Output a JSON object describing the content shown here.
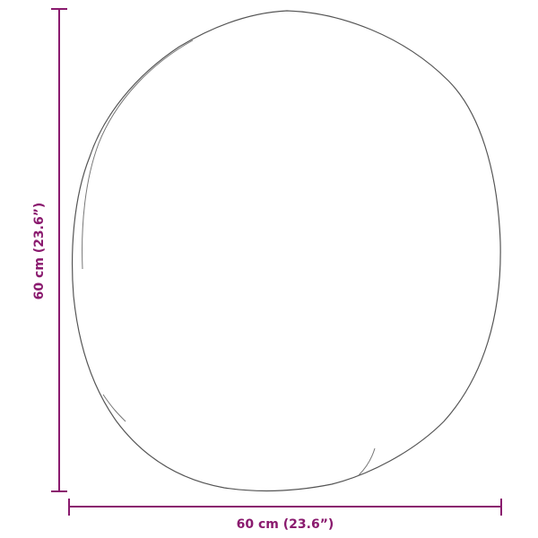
{
  "dimensions": {
    "width_label": "60 cm (23.6”)",
    "height_label": "60 cm (23.6”)"
  },
  "colors": {
    "dimension": "#8a1a6e",
    "outline": "#555555"
  }
}
